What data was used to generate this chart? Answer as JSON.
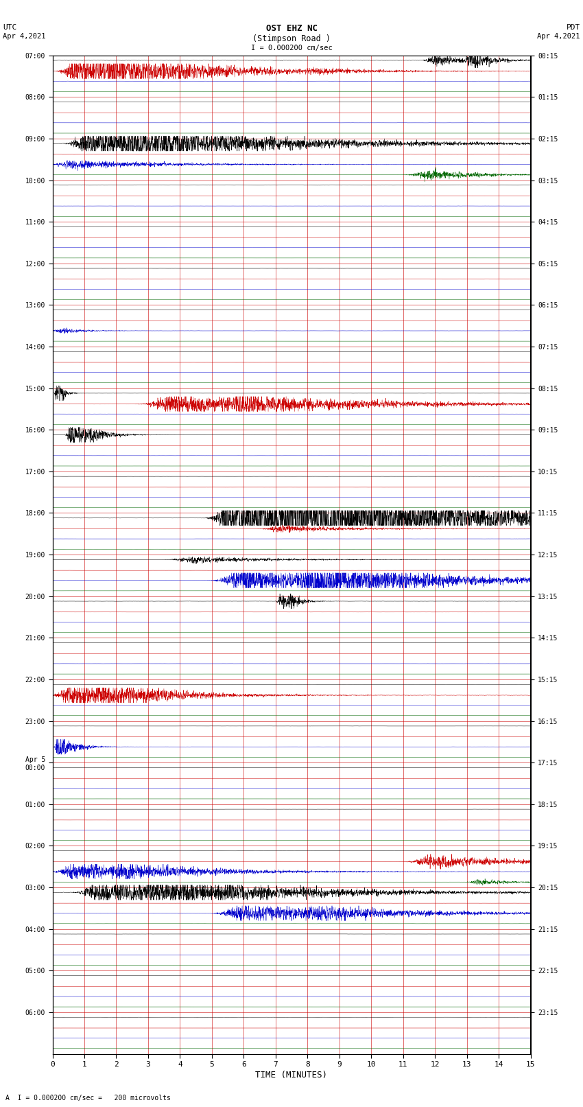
{
  "title_line1": "OST EHZ NC",
  "title_line2": "(Stimpson Road )",
  "scale_label": "I = 0.000200 cm/sec",
  "utc_label": "UTC\nApr 4,2021",
  "pdt_label": "PDT\nApr 4,2021",
  "footer_label": "A  I = 0.000200 cm/sec =   200 microvolts",
  "xlabel": "TIME (MINUTES)",
  "left_times": [
    "07:00",
    "08:00",
    "09:00",
    "10:00",
    "11:00",
    "12:00",
    "13:00",
    "14:00",
    "15:00",
    "16:00",
    "17:00",
    "18:00",
    "19:00",
    "20:00",
    "21:00",
    "22:00",
    "23:00",
    "Apr 5\n00:00",
    "01:00",
    "02:00",
    "03:00",
    "04:00",
    "05:00",
    "06:00"
  ],
  "right_times": [
    "00:15",
    "01:15",
    "02:15",
    "03:15",
    "04:15",
    "05:15",
    "06:15",
    "07:15",
    "08:15",
    "09:15",
    "10:15",
    "11:15",
    "12:15",
    "13:15",
    "14:15",
    "15:15",
    "16:15",
    "17:15",
    "18:15",
    "19:15",
    "20:15",
    "21:15",
    "22:15",
    "23:15"
  ],
  "num_rows": 24,
  "minutes_per_row": 15,
  "bg_color": "#ffffff",
  "grid_color": "#cc0000",
  "fig_width": 8.5,
  "fig_height": 16.13,
  "dpi": 100
}
